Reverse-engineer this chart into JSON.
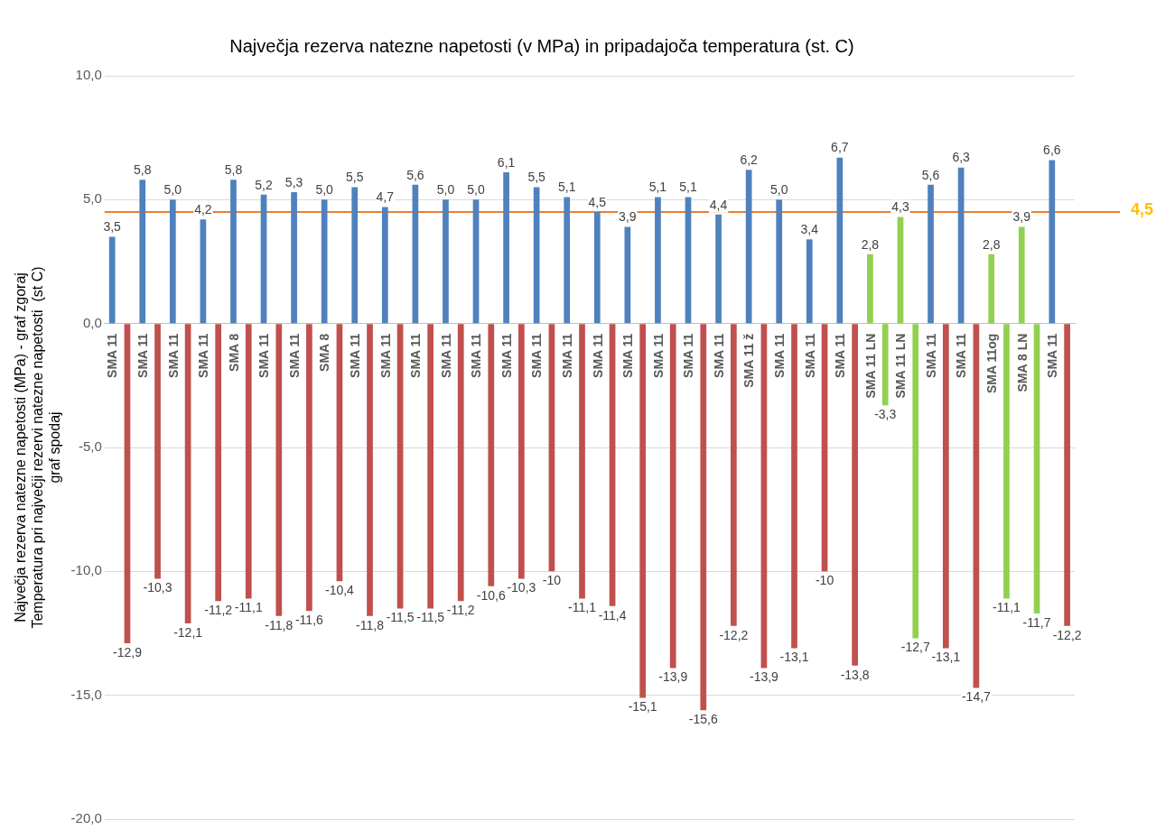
{
  "chart_data": {
    "type": "bar",
    "title": "Največja rezerva natezne napetosti (v MPa) in pripadajoča temperatura (st. C)",
    "ylabel": "Največja rezerva natezne napetosti (MPa) - graf zgoraj\nTemperatura pri največji rezervi natezne napetosti  (st C)\ngraf spodaj",
    "categories": [
      "SMA 11",
      "SMA 11",
      "SMA 11",
      "SMA 11",
      "SMA 8",
      "SMA 11",
      "SMA 11",
      "SMA 8",
      "SMA 11",
      "SMA 11",
      "SMA 11",
      "SMA 11",
      "SMA 11",
      "SMA 11",
      "SMA 11",
      "SMA 11",
      "SMA 11",
      "SMA 11",
      "SMA 11",
      "SMA 11",
      "SMA 11",
      "SMA 11 ž",
      "SMA 11",
      "SMA 11",
      "SMA 11",
      "SMA 11 LN",
      "SMA 11 LN",
      "SMA 11",
      "SMA 11",
      "SMA 11og",
      "SMA 8 LN",
      "SMA 11"
    ],
    "series": [
      {
        "colors": [
          "#4f81bd",
          "#4f81bd",
          "#4f81bd",
          "#4f81bd",
          "#4f81bd",
          "#4f81bd",
          "#4f81bd",
          "#4f81bd",
          "#4f81bd",
          "#4f81bd",
          "#4f81bd",
          "#4f81bd",
          "#4f81bd",
          "#4f81bd",
          "#4f81bd",
          "#4f81bd",
          "#4f81bd",
          "#4f81bd",
          "#4f81bd",
          "#4f81bd",
          "#4f81bd",
          "#4f81bd",
          "#4f81bd",
          "#4f81bd",
          "#4f81bd",
          "#92d050",
          "#92d050",
          "#4f81bd",
          "#4f81bd",
          "#92d050",
          "#92d050",
          "#4f81bd"
        ],
        "values": [
          3.5,
          5.8,
          5.0,
          4.2,
          5.8,
          5.2,
          5.3,
          5.0,
          5.5,
          4.7,
          5.6,
          5.0,
          5.0,
          6.1,
          5.5,
          5.1,
          4.5,
          3.9,
          5.1,
          5.1,
          4.4,
          6.2,
          5.0,
          3.4,
          6.7,
          2.8,
          4.3,
          5.6,
          6.3,
          2.8,
          3.9,
          6.6
        ],
        "value_labels": [
          "3,5",
          "5,8",
          "5,0",
          "4,2",
          "5,8",
          "5,2",
          "5,3",
          "5,0",
          "5,5",
          "4,7",
          "5,6",
          "5,0",
          "5,0",
          "6,1",
          "5,5",
          "5,1",
          "4,5",
          "3,9",
          "5,1",
          "5,1",
          "4,4",
          "6,2",
          "5,0",
          "3,4",
          "6,7",
          "2,8",
          "4,3",
          "5,6",
          "6,3",
          "2,8",
          "3,9",
          "6,6"
        ]
      },
      {
        "colors": [
          "#c0504d",
          "#c0504d",
          "#c0504d",
          "#c0504d",
          "#c0504d",
          "#c0504d",
          "#c0504d",
          "#c0504d",
          "#c0504d",
          "#c0504d",
          "#c0504d",
          "#c0504d",
          "#c0504d",
          "#c0504d",
          "#c0504d",
          "#c0504d",
          "#c0504d",
          "#c0504d",
          "#c0504d",
          "#c0504d",
          "#c0504d",
          "#c0504d",
          "#c0504d",
          "#c0504d",
          "#c0504d",
          "#92d050",
          "#92d050",
          "#c0504d",
          "#c0504d",
          "#92d050",
          "#92d050",
          "#c0504d"
        ],
        "values": [
          -12.9,
          -10.3,
          -12.1,
          -11.2,
          -11.1,
          -11.8,
          -11.6,
          -10.4,
          -11.8,
          -11.5,
          -11.5,
          -11.2,
          -10.6,
          -10.3,
          -10,
          -11.1,
          -11.4,
          -15.1,
          -13.9,
          -15.6,
          -12.2,
          -13.9,
          -13.1,
          -10,
          -13.8,
          -3.3,
          -12.7,
          -13.1,
          -14.7,
          -11.1,
          -11.7,
          -12.2
        ],
        "value_labels": [
          "-12,9",
          "-10,3",
          "-12,1",
          "-11,2",
          "-11,1",
          "-11,8",
          "-11,6",
          "-10,4",
          "-11,8",
          "-11,5",
          "-11,5",
          "-11,2",
          "-10,6",
          "-10,3",
          "-10",
          "-11,1",
          "-11,4",
          "-15,1",
          "-13,9",
          "-15,6",
          "-12,2",
          "-13,9",
          "-13,1",
          "-10",
          "-13,8",
          "-3,3",
          "-12,7",
          "-13,1",
          "-14,7",
          "-11,1",
          "-11,7",
          "-12,2"
        ]
      }
    ],
    "ylim": [
      -20,
      10
    ],
    "yticks": [
      {
        "value": -20,
        "label": "-20,0"
      },
      {
        "value": -15,
        "label": "-15,0"
      },
      {
        "value": -10,
        "label": "-10,0"
      },
      {
        "value": -5,
        "label": "-5,0"
      },
      {
        "value": 0,
        "label": "0,0"
      },
      {
        "value": 5,
        "label": "5,0"
      },
      {
        "value": 10,
        "label": "10,0"
      }
    ],
    "grid": "y",
    "ref_lines": [
      {
        "axis": "y",
        "value": 4.5,
        "label": "4,5",
        "color": "#ed7d31"
      }
    ]
  }
}
